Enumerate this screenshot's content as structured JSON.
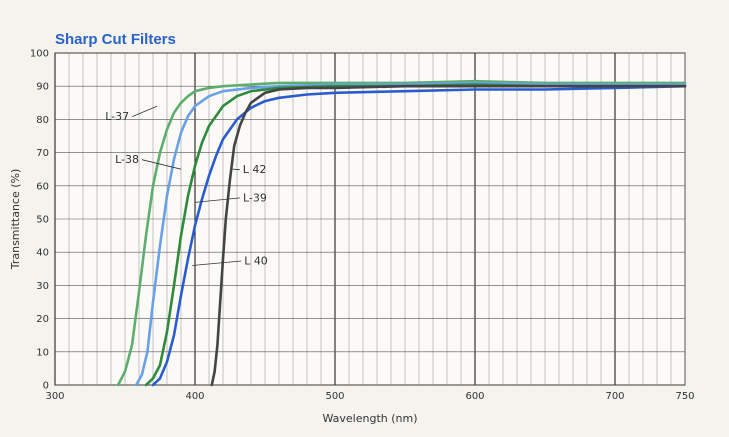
{
  "chart_data": {
    "type": "line",
    "title": "Sharp Cut Filters",
    "xlabel": "Wavelength (nm)",
    "ylabel": "Transmittance (%)",
    "xlim": [
      300,
      750
    ],
    "ylim": [
      0,
      100
    ],
    "xticks": [
      300,
      400,
      500,
      600,
      700,
      750
    ],
    "yticks": [
      0,
      10,
      20,
      30,
      40,
      50,
      60,
      70,
      80,
      90,
      100
    ],
    "grid": true,
    "series": [
      {
        "name": "L-37",
        "color": "#5cae6e",
        "points": [
          [
            345,
            0
          ],
          [
            350,
            4
          ],
          [
            355,
            12
          ],
          [
            360,
            28
          ],
          [
            365,
            45
          ],
          [
            370,
            60
          ],
          [
            375,
            70
          ],
          [
            380,
            77
          ],
          [
            385,
            82
          ],
          [
            390,
            85
          ],
          [
            395,
            87
          ],
          [
            400,
            88.5
          ],
          [
            410,
            89.5
          ],
          [
            420,
            90
          ],
          [
            440,
            90.5
          ],
          [
            460,
            91
          ],
          [
            500,
            91
          ],
          [
            550,
            91
          ],
          [
            600,
            91.5
          ],
          [
            650,
            91
          ],
          [
            700,
            91
          ],
          [
            750,
            91
          ]
        ]
      },
      {
        "name": "L-38",
        "color": "#6aa0e6",
        "points": [
          [
            358,
            0
          ],
          [
            362,
            3
          ],
          [
            366,
            10
          ],
          [
            370,
            25
          ],
          [
            375,
            42
          ],
          [
            380,
            57
          ],
          [
            385,
            68
          ],
          [
            390,
            76
          ],
          [
            395,
            81
          ],
          [
            400,
            84
          ],
          [
            410,
            87
          ],
          [
            420,
            88.5
          ],
          [
            440,
            89.5
          ],
          [
            460,
            90
          ],
          [
            500,
            90.5
          ],
          [
            550,
            90.5
          ],
          [
            600,
            91
          ],
          [
            650,
            90.5
          ],
          [
            700,
            90.5
          ],
          [
            750,
            90.5
          ]
        ]
      },
      {
        "name": "L-39",
        "color": "#2e8a3c",
        "points": [
          [
            365,
            0
          ],
          [
            370,
            2
          ],
          [
            375,
            6
          ],
          [
            380,
            16
          ],
          [
            385,
            30
          ],
          [
            390,
            45
          ],
          [
            395,
            57
          ],
          [
            400,
            66
          ],
          [
            405,
            73
          ],
          [
            410,
            78
          ],
          [
            420,
            84
          ],
          [
            430,
            87
          ],
          [
            440,
            88.5
          ],
          [
            460,
            89.5
          ],
          [
            500,
            90
          ],
          [
            550,
            90
          ],
          [
            600,
            90.5
          ],
          [
            650,
            90
          ],
          [
            700,
            90
          ],
          [
            750,
            90
          ]
        ]
      },
      {
        "name": "L 40",
        "color": "#2a5cd0",
        "points": [
          [
            370,
            0
          ],
          [
            375,
            2
          ],
          [
            380,
            7
          ],
          [
            385,
            15
          ],
          [
            390,
            27
          ],
          [
            395,
            38
          ],
          [
            400,
            48
          ],
          [
            405,
            56
          ],
          [
            410,
            63
          ],
          [
            415,
            69
          ],
          [
            420,
            74
          ],
          [
            430,
            80
          ],
          [
            440,
            83.5
          ],
          [
            450,
            85.5
          ],
          [
            460,
            86.5
          ],
          [
            480,
            87.5
          ],
          [
            500,
            88
          ],
          [
            550,
            88.5
          ],
          [
            600,
            89
          ],
          [
            650,
            89
          ],
          [
            700,
            89.5
          ],
          [
            750,
            90
          ]
        ]
      },
      {
        "name": "L 42",
        "color": "#444444",
        "points": [
          [
            412,
            0
          ],
          [
            414,
            4
          ],
          [
            416,
            12
          ],
          [
            418,
            25
          ],
          [
            420,
            38
          ],
          [
            422,
            50
          ],
          [
            425,
            62
          ],
          [
            428,
            72
          ],
          [
            432,
            78
          ],
          [
            436,
            82
          ],
          [
            440,
            85
          ],
          [
            450,
            88
          ],
          [
            460,
            89
          ],
          [
            480,
            89.5
          ],
          [
            500,
            89.5
          ],
          [
            550,
            90
          ],
          [
            600,
            90
          ],
          [
            650,
            90
          ],
          [
            700,
            90
          ],
          [
            750,
            90
          ]
        ]
      }
    ],
    "annotations": [
      {
        "text": "L-37",
        "series": "L-37",
        "at": [
          373,
          84
        ]
      },
      {
        "text": "L-38",
        "series": "L-38",
        "at": [
          390,
          65
        ]
      },
      {
        "text": "L 42",
        "series": "L 42",
        "at": [
          427,
          65
        ]
      },
      {
        "text": "L-39",
        "series": "L-39",
        "at": [
          400,
          55
        ]
      },
      {
        "text": "L 40",
        "series": "L 40",
        "at": [
          398,
          36
        ]
      }
    ]
  }
}
